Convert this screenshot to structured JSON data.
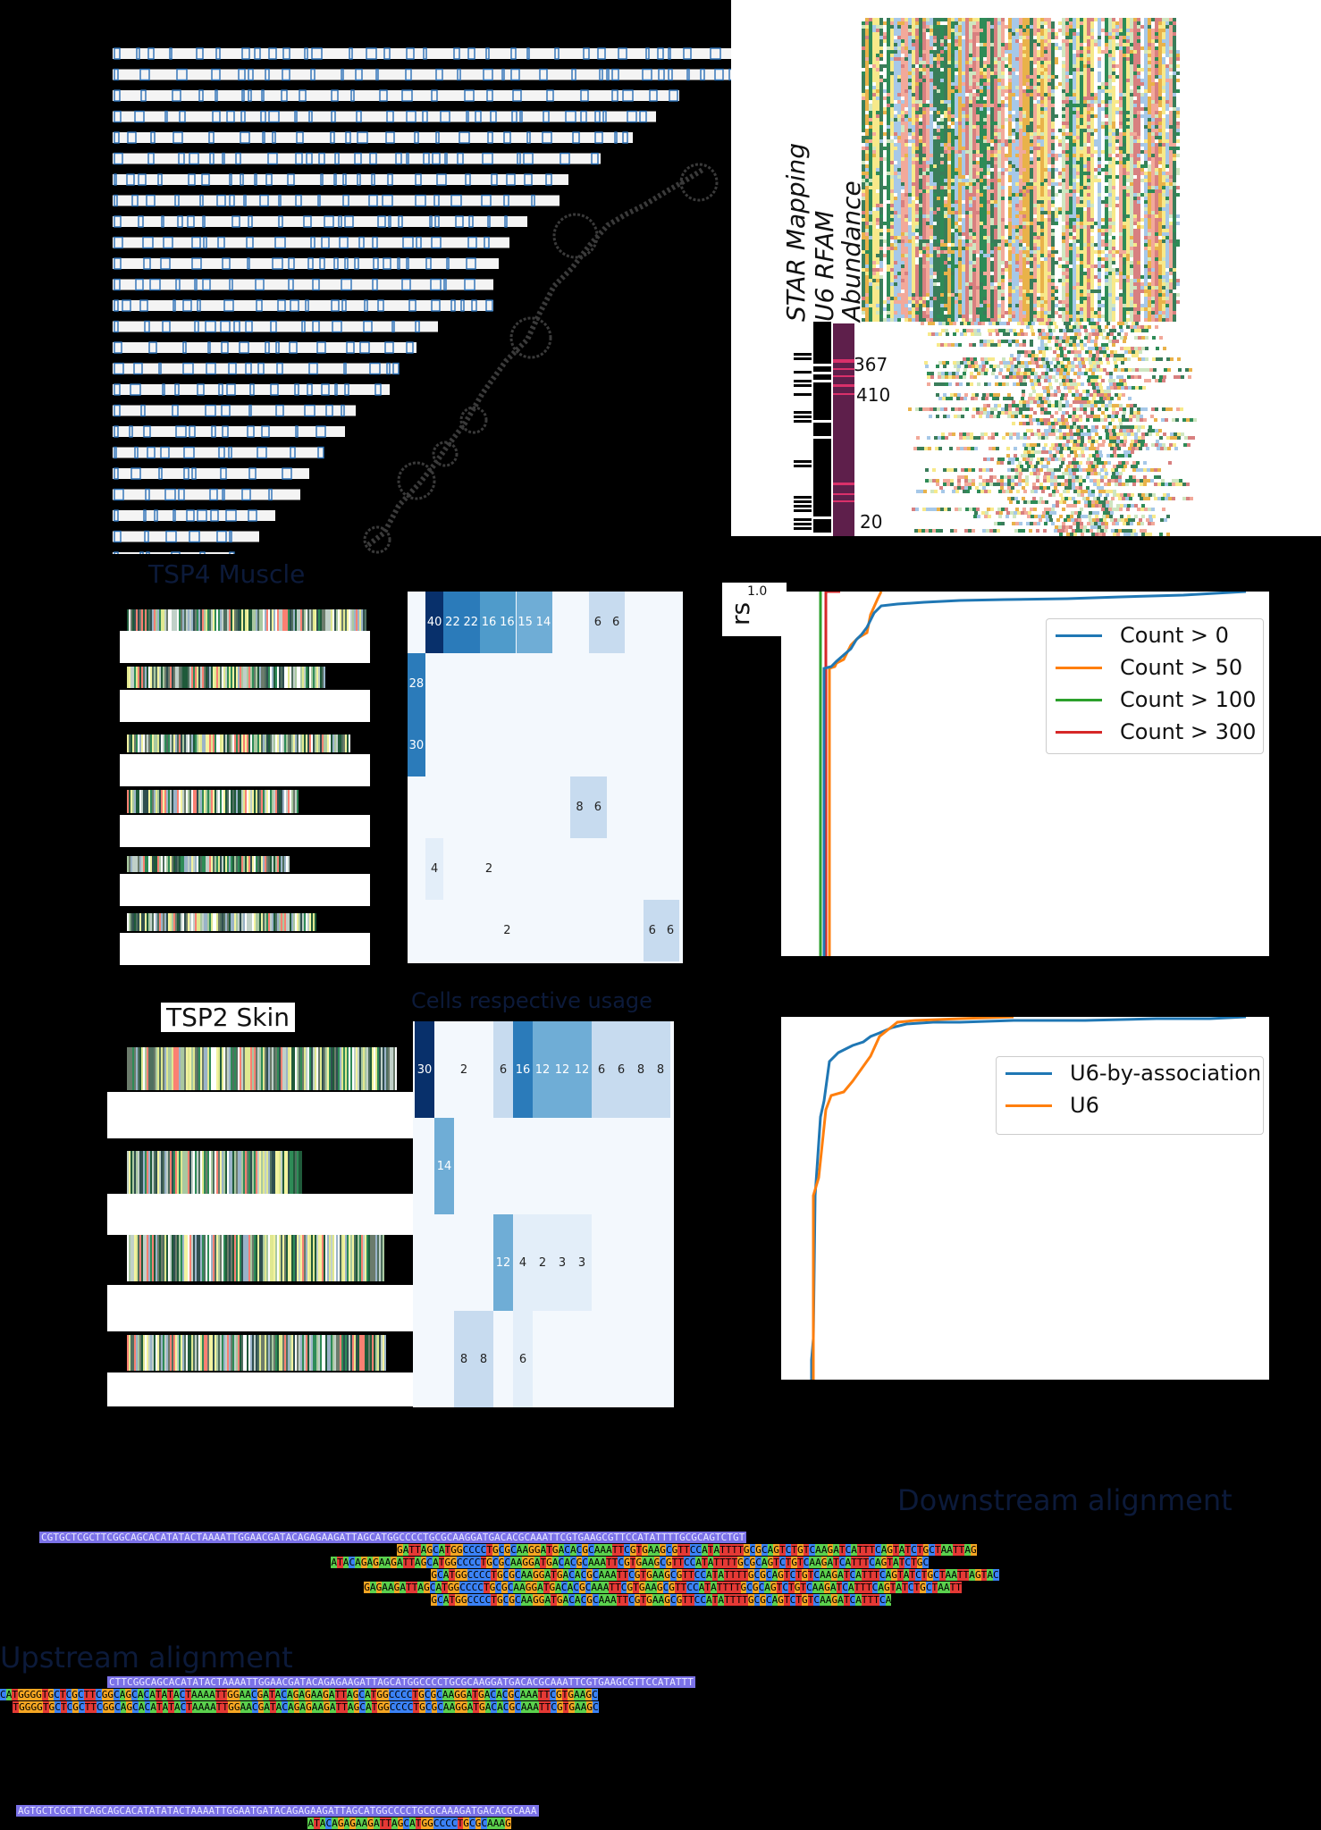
{
  "colors": {
    "bar_outline": "#2a6fb5",
    "bar_fill": "#f4f4f4",
    "heat_dark": "#08306b",
    "heat_mid": "#3f8fc5",
    "heat_light": "#cfe1f2",
    "heat_bg": "#f3f8fd",
    "abundance": "#5e1f4b",
    "abundance_highlight": "#d9306a",
    "c_blue": "#1f77b4",
    "c_orange": "#ff7f0e",
    "c_green": "#2ca02c",
    "c_red": "#d62728",
    "nt_A": "#5bd14d",
    "nt_C": "#3b82f6",
    "nt_G": "#f5a623",
    "nt_T": "#e53935",
    "ref": "#7b72e8"
  },
  "rfam_panel": {
    "labels": [
      "STAR Mapping",
      "U6 RFAM",
      "Abundance"
    ],
    "abundance_ticks": [
      "367",
      "410",
      "20"
    ]
  },
  "titles": {
    "muscle": "TSP4 Muscle",
    "skin": "TSP2 Skin",
    "heat2": "Cells respective usage",
    "downstream": "Downstream alignment",
    "upstream": "Upstream alignment",
    "cdf_ylabel_fragment": "rs",
    "cdf_tick": "1.0"
  },
  "heat1": {
    "cells": [
      {
        "col": 0,
        "row": 0,
        "v": "40",
        "shade": "dark"
      },
      {
        "col": 1,
        "row": 0,
        "v": "22",
        "shade": "mid"
      },
      {
        "col": 2,
        "row": 0,
        "v": "22",
        "shade": "mid"
      },
      {
        "col": 3,
        "row": 0,
        "v": "16",
        "shade": "mid2"
      },
      {
        "col": 4,
        "row": 0,
        "v": "16",
        "shade": "mid2"
      },
      {
        "col": 5,
        "row": 0,
        "v": "15",
        "shade": "mid3"
      },
      {
        "col": 6,
        "row": 0,
        "v": "14",
        "shade": "mid3"
      },
      {
        "col": 9,
        "row": 0,
        "v": "6",
        "shade": "light"
      },
      {
        "col": 10,
        "row": 0,
        "v": "6",
        "shade": "light"
      },
      {
        "col": -1,
        "row": 1,
        "v": "28",
        "shade": "mid"
      },
      {
        "col": -1,
        "row": 2,
        "v": "30",
        "shade": "mid"
      },
      {
        "col": 8,
        "row": 3,
        "v": "8",
        "shade": "light"
      },
      {
        "col": 9,
        "row": 3,
        "v": "6",
        "shade": "light"
      },
      {
        "col": 0,
        "row": 4,
        "v": "4",
        "shade": "faint"
      },
      {
        "col": 3,
        "row": 4,
        "v": "2",
        "shade": "none"
      },
      {
        "col": 4,
        "row": 5,
        "v": "2",
        "shade": "none"
      },
      {
        "col": 12,
        "row": 5,
        "v": "6",
        "shade": "light"
      },
      {
        "col": 13,
        "row": 5,
        "v": "6",
        "shade": "light"
      }
    ]
  },
  "heat2": {
    "cells": [
      {
        "col": 0,
        "row": 0,
        "v": "30",
        "shade": "dark"
      },
      {
        "col": 2,
        "row": 0,
        "v": "2",
        "shade": "none"
      },
      {
        "col": 4,
        "row": 0,
        "v": "6",
        "shade": "light"
      },
      {
        "col": 5,
        "row": 0,
        "v": "16",
        "shade": "mid"
      },
      {
        "col": 6,
        "row": 0,
        "v": "12",
        "shade": "mid3"
      },
      {
        "col": 7,
        "row": 0,
        "v": "12",
        "shade": "mid3"
      },
      {
        "col": 8,
        "row": 0,
        "v": "12",
        "shade": "mid3"
      },
      {
        "col": 9,
        "row": 0,
        "v": "6",
        "shade": "light"
      },
      {
        "col": 10,
        "row": 0,
        "v": "6",
        "shade": "light"
      },
      {
        "col": 11,
        "row": 0,
        "v": "8",
        "shade": "light"
      },
      {
        "col": 12,
        "row": 0,
        "v": "8",
        "shade": "light"
      },
      {
        "col": 1,
        "row": 1,
        "v": "14",
        "shade": "mid3"
      },
      {
        "col": 4,
        "row": 2,
        "v": "12",
        "shade": "mid3"
      },
      {
        "col": 5,
        "row": 2,
        "v": "4",
        "shade": "faint"
      },
      {
        "col": 6,
        "row": 2,
        "v": "2",
        "shade": "faint"
      },
      {
        "col": 7,
        "row": 2,
        "v": "3",
        "shade": "faint"
      },
      {
        "col": 8,
        "row": 2,
        "v": "3",
        "shade": "faint"
      },
      {
        "col": 2,
        "row": 3,
        "v": "8",
        "shade": "light"
      },
      {
        "col": 3,
        "row": 3,
        "v": "8",
        "shade": "light"
      },
      {
        "col": 5,
        "row": 3,
        "v": "6",
        "shade": "faint"
      }
    ]
  },
  "chart_data": [
    {
      "type": "line",
      "title": "",
      "series": [
        {
          "name": "Count > 0"
        },
        {
          "name": "Count > 50"
        },
        {
          "name": "Count > 100"
        },
        {
          "name": "Count > 300"
        }
      ],
      "ylim_top_tick": "1.0",
      "legend": "top-right"
    },
    {
      "type": "line",
      "title": "",
      "series": [
        {
          "name": "U6-by-association"
        },
        {
          "name": "U6"
        }
      ],
      "legend": "top-right"
    }
  ],
  "alignments": {
    "downstream": {
      "ref": "CGTGCTCGCTTCGGCAGCACATATACTAAAATTGGAACGATACAGAGAAGATTAGCATGGCCCCTGCGCAAGGATGACACGCAAATTCGTGAAGCGTTCCATATTTTGCGCAGTCTGT",
      "reads": [
        {
          "offset": 500,
          "seq": "GATTAGCATGGCCCCTGCGCAAGGATGACACGCAAATTCGTGAAGCGTTCCATATTTTGCGCAGTCTGTCAAGATCATTTCAGTATCTGCTAATTAG"
        },
        {
          "offset": 408,
          "seq": "ATACAGAGAAGATTAGCATGGCCCCTGCGCAAGGATGACACGCAAATTCGTGAAGCGTTCCATATTTTGCGCAGTCTGTCAAGATCATTTCAGTATCTGC"
        },
        {
          "offset": 548,
          "seq": "GCATGGCCCCTGCGCAAGGATGACACGCAAATTCGTGAAGCGTTCCATATTTTGCGCAGTCTGTCAAGATCATTTCAGTATCTGCTAATTAGTAC"
        },
        {
          "offset": 454,
          "seq": "GAGAAGATTAGCATGGCCCCTGCGCAAGGATGACACGCAAATTCGTGAAGCGTTCCATATTTTGCGCAGTCTGTCAAGATCATTTCAGTATCTGCTAATT"
        },
        {
          "offset": 548,
          "seq": "GCATGGCCCCTGCGCAAGGATGACACGCAAATTCGTGAAGCGTTCCATATTTTGCGCAGTCTGTCAAGATCATTTCA"
        }
      ]
    },
    "upstream": {
      "ref": "CTTCGGCAGCACATATACTAAAATTGGAACGATACAGAGAAGATTAGCATGGCCCCTGCGCAAGGATGACACGCAAATTCGTGAAGCGTTCCATATTT",
      "reads": [
        {
          "offset": 0,
          "seq": "CATGGGGTGCTCGCTTCGGCAGCACATATACTAAAATTGGAACGATACAGAGAAGATTAGCATGGCCCCTGCGCAAGGATGACACGCAAATTCGTGAAGC"
        },
        {
          "offset": 18,
          "seq": "TGGGGTGCTCGCTTCGGCAGCACATATACTAAAATTGGAACGATACAGAGAAGATTAGCATGGCCCCTGCGCAAGGATGACACGCAAATTCGTGAAGC"
        }
      ]
    },
    "third": {
      "ref": "AGTGCTCGCTTCAGCAGCACATATATACTAAAATTGGAATGATACAGAGAAGATTAGCATGGCCCCTGCGCAAAGATGACACGCAAA",
      "reads": [
        {
          "offset": 408,
          "seq": "ATACAGAGAAGATTAGCATGGCCCCTGCGCAAAG"
        }
      ]
    }
  }
}
